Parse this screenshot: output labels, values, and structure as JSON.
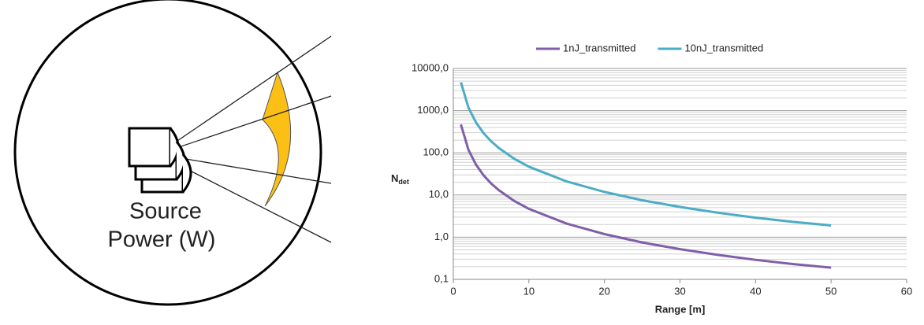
{
  "diagram": {
    "label_line1": "Source",
    "label_line2": "Power (W)"
  },
  "chart_data": {
    "type": "line",
    "x_label": "Range [m]",
    "y_label": "N",
    "y_label_sub": "det",
    "log_y": true,
    "grid": true,
    "legend": "top",
    "xlim": [
      0,
      60
    ],
    "xticks": [
      0,
      10,
      20,
      30,
      40,
      50,
      60
    ],
    "ylim": [
      0.1,
      10000
    ],
    "yticks": [
      {
        "value": 0.1,
        "label": "0,1"
      },
      {
        "value": 1,
        "label": "1,0"
      },
      {
        "value": 10,
        "label": "10,0"
      },
      {
        "value": 100,
        "label": "100,0"
      },
      {
        "value": 1000,
        "label": "1000,0"
      },
      {
        "value": 10000,
        "label": "10000,0"
      }
    ],
    "yminor": [
      0.2,
      0.3,
      0.4,
      0.5,
      0.6,
      0.7,
      0.8,
      0.9,
      2,
      3,
      4,
      5,
      6,
      7,
      8,
      9,
      20,
      30,
      40,
      50,
      60,
      70,
      80,
      90,
      200,
      300,
      400,
      500,
      600,
      700,
      800,
      900,
      2000,
      3000,
      4000,
      5000,
      6000,
      7000,
      8000,
      9000
    ],
    "x": [
      1,
      2,
      3,
      4,
      5,
      6,
      8,
      10,
      15,
      20,
      25,
      30,
      35,
      40,
      45,
      50
    ],
    "series": [
      {
        "name": "1nJ_transmitted",
        "color": "#7f5fa8",
        "values": [
          470,
          117.5,
          52.2,
          29.4,
          18.8,
          13.1,
          7.34,
          4.7,
          2.09,
          1.18,
          0.75,
          0.52,
          0.38,
          0.29,
          0.23,
          0.19
        ]
      },
      {
        "name": "10nJ_transmitted",
        "color": "#4bacc6",
        "values": [
          4700,
          1175,
          522,
          294,
          188,
          131,
          73.4,
          47,
          20.9,
          11.8,
          7.5,
          5.2,
          3.8,
          2.9,
          2.3,
          1.9
        ]
      }
    ]
  }
}
